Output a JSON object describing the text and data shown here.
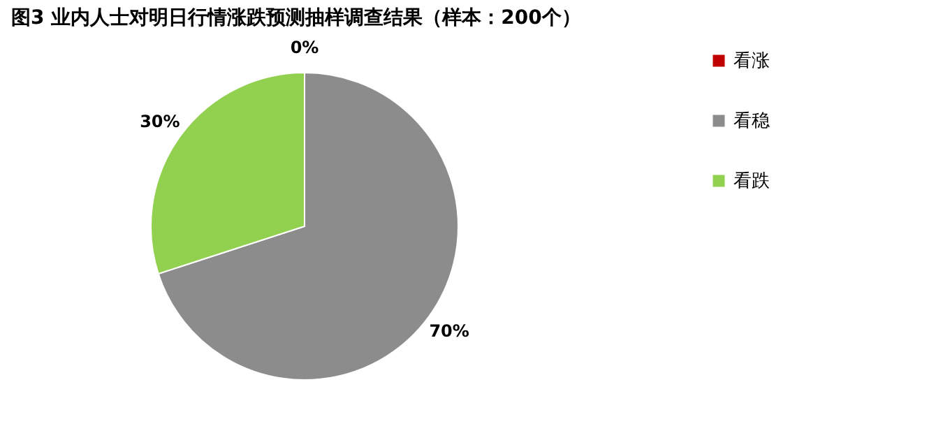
{
  "chart_data": {
    "type": "pie",
    "title": "图3  业内人士对明日行情涨跌预测抽样调查结果（样本：200个）",
    "categories": [
      "看涨",
      "看稳",
      "看跌"
    ],
    "values": [
      0,
      70,
      30
    ],
    "colors": [
      "#c00000",
      "#8c8c8c",
      "#92d050"
    ],
    "value_labels": [
      "0%",
      "70%",
      "30%"
    ],
    "legend": "right"
  }
}
